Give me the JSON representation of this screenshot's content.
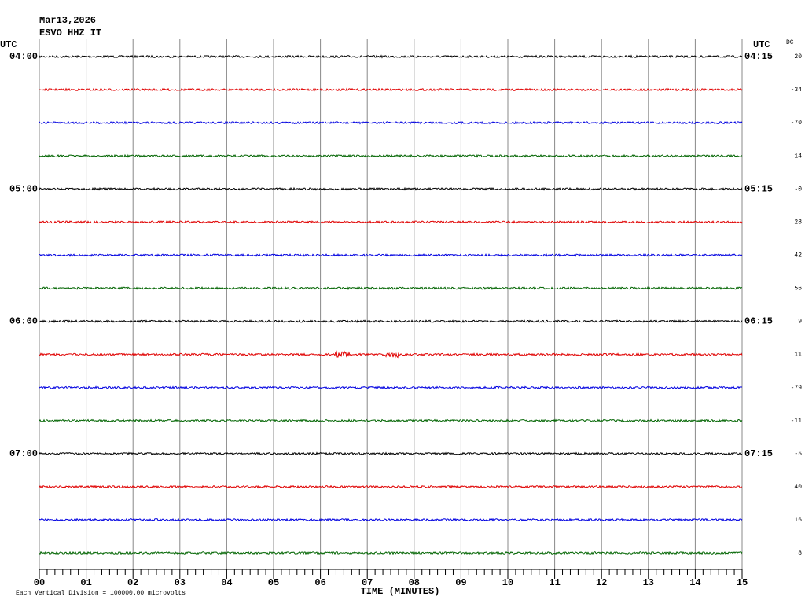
{
  "header": {
    "date": "Mar13,2026",
    "station": "ESVO HHZ IT"
  },
  "left_axis": {
    "title": "UTC",
    "labels": [
      "04:00",
      "05:00",
      "06:00",
      "07:00"
    ]
  },
  "right_axis": {
    "title": "UTC",
    "labels": [
      "04:15",
      "05:15",
      "06:15",
      "07:15"
    ]
  },
  "dc": {
    "title": "DC",
    "values": [
      "20",
      "-34",
      "-70",
      "14",
      "-0",
      "28",
      "42",
      "56",
      "9",
      "11",
      "-79",
      "-11",
      "-5",
      "40",
      "16",
      "8"
    ]
  },
  "x_axis": {
    "title": "TIME (MINUTES)",
    "labels": [
      "00",
      "01",
      "02",
      "03",
      "04",
      "05",
      "06",
      "07",
      "08",
      "09",
      "10",
      "11",
      "12",
      "13",
      "14",
      "15"
    ]
  },
  "traces": {
    "colors": [
      "#000000",
      "#e00000",
      "#0000e0",
      "#006400"
    ]
  },
  "footer": {
    "scale_note": "Each Vertical Division = 100000.00 microvolts"
  }
}
